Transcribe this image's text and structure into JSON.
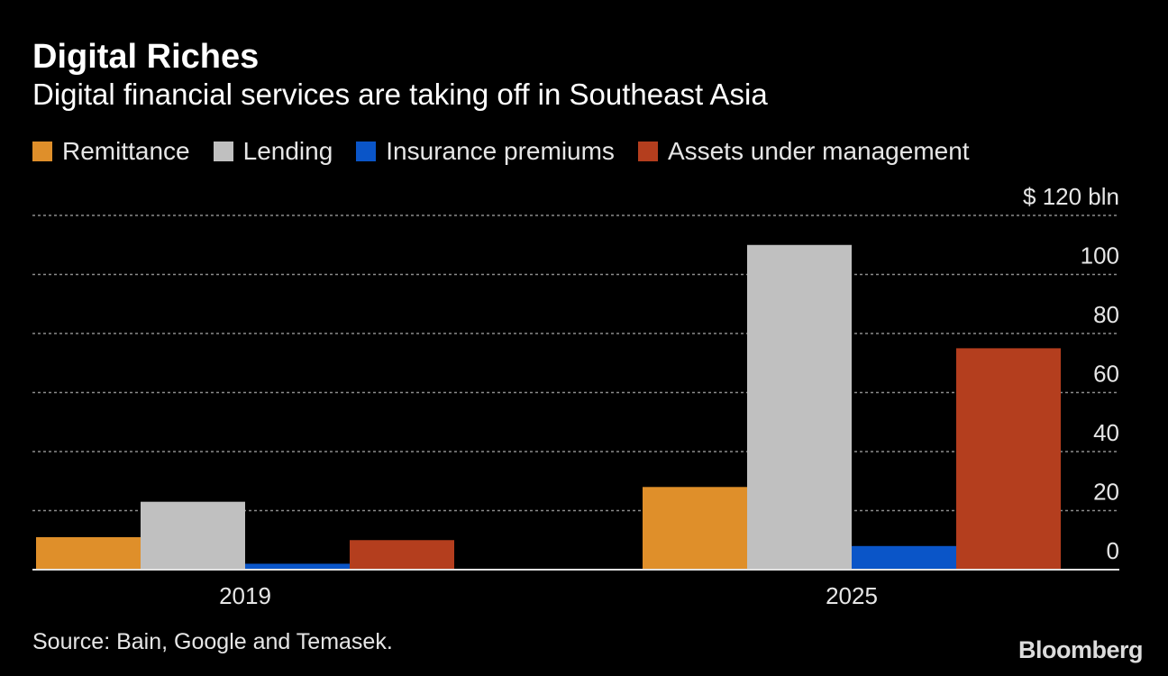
{
  "header": {
    "title": "Digital Riches",
    "subtitle": "Digital financial services are taking off in Southeast Asia"
  },
  "footer": {
    "source": "Source: Bain, Google and Temasek.",
    "brand": "Bloomberg"
  },
  "chart_data": {
    "type": "bar",
    "categories": [
      "2019",
      "2025"
    ],
    "series": [
      {
        "name": "Remittance",
        "color": "#df8f2a",
        "values": [
          11,
          28
        ]
      },
      {
        "name": "Lending",
        "color": "#c0c0c0",
        "values": [
          23,
          110
        ]
      },
      {
        "name": "Insurance premiums",
        "color": "#0a55c8",
        "values": [
          2,
          8
        ]
      },
      {
        "name": "Assets under management",
        "color": "#b43e1e",
        "values": [
          10,
          75
        ]
      }
    ],
    "y_axis": {
      "min": 0,
      "max": 120,
      "ticks": [
        0,
        20,
        40,
        60,
        80,
        100,
        120
      ],
      "tick_labels": [
        "0",
        "20",
        "40",
        "60",
        "80",
        "100",
        "$ 120 bln"
      ],
      "position": "right"
    },
    "grid": true,
    "grid_style": "dashed",
    "legend_position": "top-left",
    "title": "Digital Riches",
    "subtitle": "Digital financial services are taking off in Southeast Asia",
    "xlabel": "",
    "ylabel": ""
  }
}
